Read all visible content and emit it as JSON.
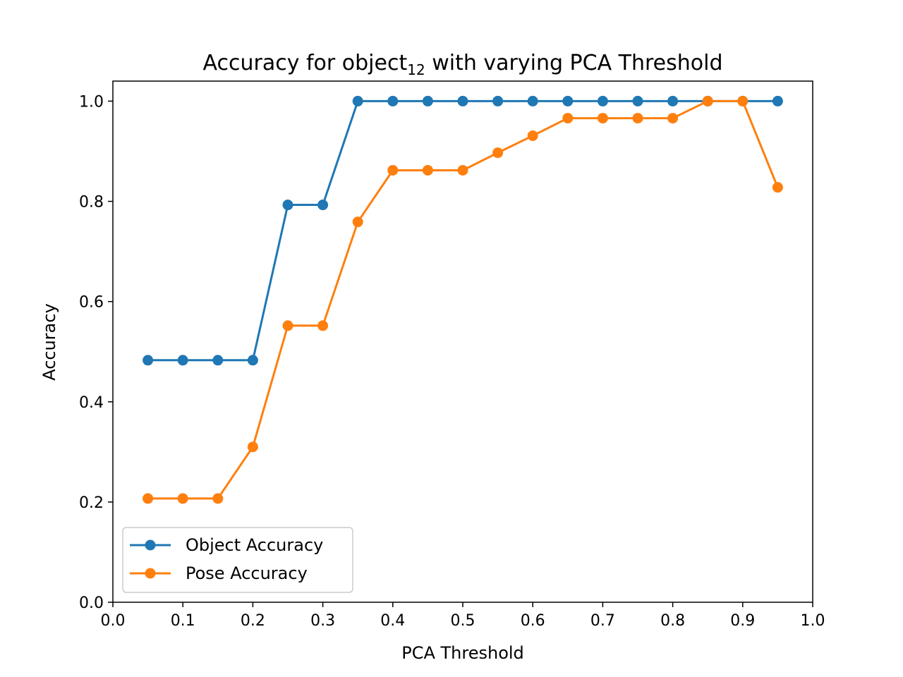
{
  "chart_data": {
    "type": "line",
    "title_main": "Accuracy for object",
    "title_subscript": "12",
    "title_rest": " with varying PCA Threshold",
    "xlabel": "PCA Threshold",
    "ylabel": "Accuracy",
    "xlim": [
      0.0,
      1.0
    ],
    "ylim": [
      0.0,
      1.04
    ],
    "xticks": [
      "0.0",
      "0.1",
      "0.2",
      "0.3",
      "0.4",
      "0.5",
      "0.6",
      "0.7",
      "0.8",
      "0.9",
      "1.0"
    ],
    "yticks": [
      "0.0",
      "0.2",
      "0.4",
      "0.6",
      "0.8",
      "1.0"
    ],
    "grid": false,
    "legend_position": "lower-left",
    "x": [
      0.05,
      0.1,
      0.15,
      0.2,
      0.25,
      0.3,
      0.35,
      0.4,
      0.45,
      0.5,
      0.55,
      0.6,
      0.65,
      0.7,
      0.75,
      0.8,
      0.85,
      0.9,
      0.95
    ],
    "series": [
      {
        "name": "Object Accuracy",
        "color": "#1f77b4",
        "values": [
          0.483,
          0.483,
          0.483,
          0.483,
          0.793,
          0.793,
          1.0,
          1.0,
          1.0,
          1.0,
          1.0,
          1.0,
          1.0,
          1.0,
          1.0,
          1.0,
          1.0,
          1.0,
          1.0
        ]
      },
      {
        "name": "Pose Accuracy",
        "color": "#ff7f0e",
        "values": [
          0.207,
          0.207,
          0.207,
          0.31,
          0.552,
          0.552,
          0.759,
          0.862,
          0.862,
          0.862,
          0.897,
          0.931,
          0.966,
          0.966,
          0.966,
          0.966,
          1.0,
          1.0,
          0.828
        ]
      }
    ]
  }
}
